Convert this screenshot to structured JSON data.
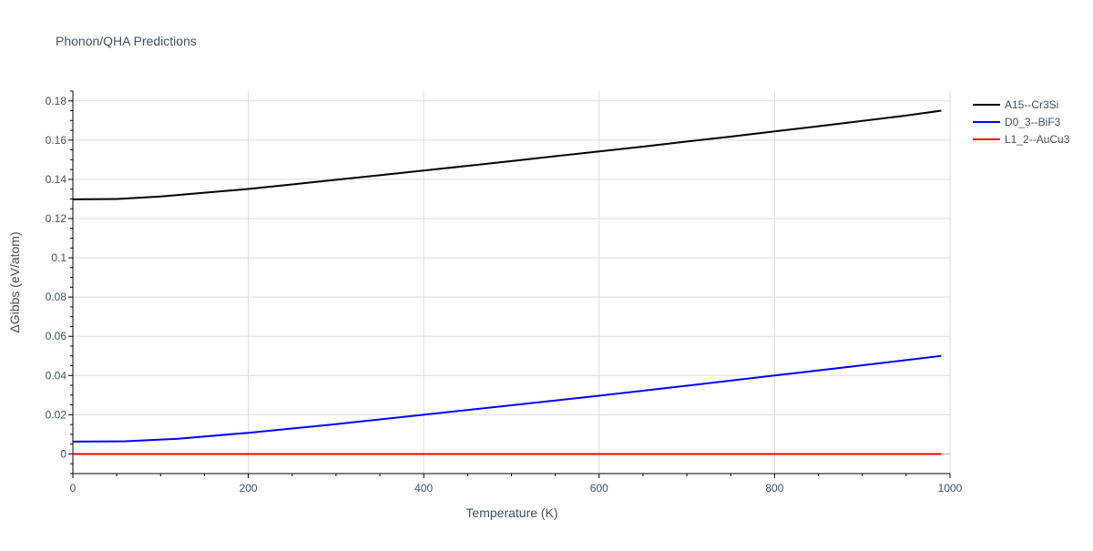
{
  "chart_data": {
    "type": "line",
    "title": "Phonon/QHA Predictions",
    "xlabel": "Temperature (K)",
    "ylabel": "ΔGibbs (eV/atom)",
    "xlim": [
      0,
      1000
    ],
    "ylim": [
      -0.01,
      0.185
    ],
    "xticks": [
      0,
      200,
      400,
      600,
      800,
      1000
    ],
    "xtick_labels": [
      "0",
      "200",
      "400",
      "600",
      "800",
      "1000"
    ],
    "yticks": [
      0,
      0.02,
      0.04,
      0.06,
      0.08,
      0.1,
      0.12,
      0.14,
      0.16,
      0.18
    ],
    "ytick_labels": [
      "0",
      "0.02",
      "0.04",
      "0.06",
      "0.08",
      "0.1",
      "0.12",
      "0.14",
      "0.16",
      "0.18"
    ],
    "grid": true,
    "legend_position": "top-right",
    "series": [
      {
        "name": "A15--Cr3Si",
        "color": "#000000",
        "x": [
          0,
          50,
          100,
          150,
          200,
          250,
          300,
          350,
          400,
          450,
          500,
          550,
          600,
          650,
          700,
          750,
          800,
          850,
          900,
          950,
          990
        ],
        "y": [
          0.1298,
          0.13,
          0.1313,
          0.1332,
          0.1351,
          0.1374,
          0.1398,
          0.1421,
          0.1445,
          0.1469,
          0.1493,
          0.1518,
          0.1542,
          0.1567,
          0.1593,
          0.1618,
          0.1645,
          0.1671,
          0.1698,
          0.1725,
          0.175
        ]
      },
      {
        "name": "D0_3--BiF3",
        "color": "#0000ff",
        "x": [
          0,
          60,
          120,
          200,
          300,
          400,
          500,
          600,
          700,
          800,
          900,
          990
        ],
        "y": [
          0.0063,
          0.0065,
          0.0078,
          0.0108,
          0.0152,
          0.02,
          0.0248,
          0.0297,
          0.0348,
          0.04,
          0.0452,
          0.05
        ]
      },
      {
        "name": "L1_2--AuCu3",
        "color": "#ff0000",
        "x": [
          0,
          990
        ],
        "y": [
          0,
          0
        ]
      }
    ]
  }
}
